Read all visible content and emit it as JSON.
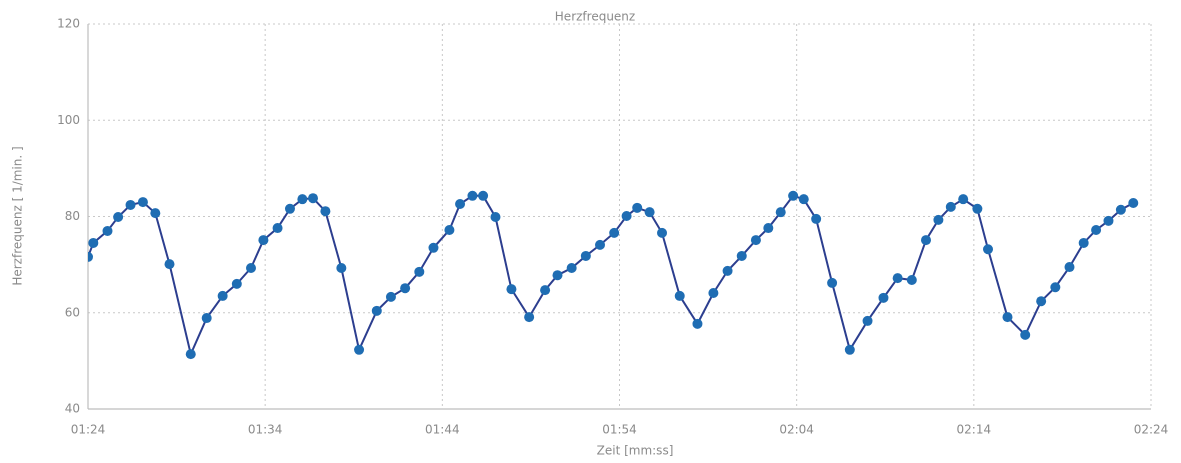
{
  "chart_data": {
    "type": "line",
    "title": "Herzfrequenz",
    "x_label": "Zeit [mm:ss]",
    "y_label": "Herzfrequenz [ 1/min. ]",
    "x": [
      84.0,
      84.3,
      85.1,
      85.7,
      86.4,
      87.1,
      87.8,
      88.6,
      89.8,
      90.7,
      91.6,
      92.4,
      93.2,
      93.9,
      94.7,
      95.4,
      96.1,
      96.7,
      97.4,
      98.3,
      99.3,
      100.3,
      101.1,
      101.9,
      102.7,
      103.5,
      104.4,
      105.0,
      105.7,
      106.3,
      107.0,
      107.9,
      108.9,
      109.8,
      110.5,
      111.3,
      112.1,
      112.9,
      113.7,
      114.4,
      115.0,
      115.7,
      116.4,
      117.4,
      118.4,
      119.3,
      120.1,
      120.9,
      121.7,
      122.4,
      123.1,
      123.8,
      124.4,
      125.1,
      126.0,
      127.0,
      128.0,
      128.9,
      129.7,
      130.5,
      131.3,
      132.0,
      132.7,
      133.4,
      134.2,
      134.8,
      135.9,
      136.9,
      137.8,
      138.6,
      139.4,
      140.2,
      140.9,
      141.6,
      142.3,
      143.0
    ],
    "series": [
      {
        "name": "Herzfrequenz",
        "color": "#2c3e8f",
        "marker_color": "#1f6db3",
        "values": [
          71.6,
          74.5,
          77.0,
          79.9,
          82.4,
          83.0,
          80.7,
          70.1,
          51.4,
          58.9,
          63.5,
          66.0,
          69.3,
          75.1,
          77.6,
          81.6,
          83.6,
          83.8,
          81.1,
          69.3,
          52.3,
          60.4,
          63.3,
          65.1,
          68.5,
          73.5,
          77.2,
          82.6,
          84.3,
          84.3,
          79.9,
          64.9,
          59.1,
          64.7,
          67.8,
          69.3,
          71.8,
          74.1,
          76.6,
          80.1,
          81.8,
          80.9,
          76.6,
          63.5,
          57.7,
          64.1,
          68.7,
          71.8,
          75.1,
          77.6,
          80.9,
          84.3,
          83.6,
          79.5,
          66.2,
          52.3,
          58.3,
          63.1,
          67.2,
          66.8,
          75.1,
          79.3,
          82.0,
          83.6,
          81.6,
          73.2,
          59.1,
          55.4,
          62.4,
          65.3,
          69.5,
          74.5,
          77.2,
          79.1,
          81.4,
          82.8
        ]
      }
    ],
    "xlim": [
      84,
      144
    ],
    "xticks": [
      {
        "value": 84,
        "label": "01:24"
      },
      {
        "value": 94,
        "label": "01:34"
      },
      {
        "value": 104,
        "label": "01:44"
      },
      {
        "value": 114,
        "label": "01:54"
      },
      {
        "value": 124,
        "label": "02:04"
      },
      {
        "value": 134,
        "label": "02:14"
      },
      {
        "value": 144,
        "label": "02:24"
      }
    ],
    "ylim": [
      40,
      120
    ],
    "yticks": [
      40,
      60,
      80,
      100,
      120
    ],
    "grid": true
  }
}
